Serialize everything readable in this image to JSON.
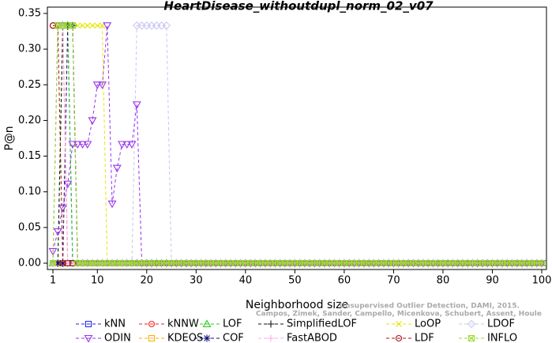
{
  "chart_data": {
    "type": "line",
    "title": "HeartDisease_withoutdupl_norm_02_v07",
    "xlabel": "Neighborhood size",
    "ylabel": "P@n",
    "annotations": [
      "Campos, Zimek, Sander, Campello, Micenkova, Schubert, Assent, Houle",
      "Unsupervised Outlier Detection, DAMI, 2015."
    ],
    "xlim": [
      1,
      100
    ],
    "ylim": [
      0,
      0.35
    ],
    "xticks": [
      1,
      10,
      20,
      30,
      40,
      50,
      60,
      70,
      80,
      90,
      100
    ],
    "yticks": [
      {
        "value": 0,
        "label": "0.00"
      },
      0.05,
      {
        "value": 0.1,
        "label": "0.10"
      },
      0.15,
      {
        "value": 0.2,
        "label": "0.20"
      },
      0.25,
      {
        "value": 0.3,
        "label": "0.30"
      },
      0.35
    ],
    "x": [
      1,
      2,
      3,
      4,
      5,
      6,
      7,
      8,
      9,
      10,
      11,
      12,
      13,
      14,
      15,
      16,
      17,
      18,
      19,
      20,
      21,
      22,
      23,
      24,
      25,
      26,
      27,
      28,
      29,
      30,
      31,
      32,
      33,
      34,
      35,
      36,
      37,
      38,
      39,
      40,
      41,
      42,
      43,
      44,
      45,
      46,
      47,
      48,
      49,
      50,
      51,
      52,
      53,
      54,
      55,
      56,
      57,
      58,
      59,
      60,
      61,
      62,
      63,
      64,
      65,
      66,
      67,
      68,
      69,
      70,
      71,
      72,
      73,
      74,
      75,
      76,
      77,
      78,
      79,
      80,
      81,
      82,
      83,
      84,
      85,
      86,
      87,
      88,
      89,
      90,
      91,
      92,
      93,
      94,
      95,
      96,
      97,
      98,
      99,
      100
    ],
    "series": [
      {
        "name": "kNN",
        "color": "#2222ee",
        "marker": "square",
        "values": [
          0,
          0.333,
          0.333,
          0.333,
          0,
          0,
          0,
          0,
          0,
          0,
          0,
          0,
          0,
          0,
          0,
          0,
          0,
          0,
          0,
          0,
          0,
          0,
          0,
          0,
          0,
          0,
          0,
          0,
          0,
          0,
          0,
          0,
          0,
          0,
          0,
          0,
          0,
          0,
          0,
          0,
          0,
          0,
          0,
          0,
          0,
          0,
          0,
          0,
          0,
          0,
          0,
          0,
          0,
          0,
          0,
          0,
          0,
          0,
          0,
          0,
          0,
          0,
          0,
          0,
          0,
          0,
          0,
          0,
          0,
          0,
          0,
          0,
          0,
          0,
          0,
          0,
          0,
          0,
          0,
          0,
          0,
          0,
          0,
          0,
          0,
          0,
          0,
          0,
          0,
          0,
          0,
          0,
          0,
          0,
          0,
          0,
          0,
          0,
          0,
          0
        ]
      },
      {
        "name": "kNNW",
        "color": "#ee2222",
        "marker": "circle",
        "values": [
          0.333,
          0.333,
          0.333,
          0,
          0,
          0,
          0,
          0,
          0,
          0,
          0,
          0,
          0,
          0,
          0,
          0,
          0,
          0,
          0,
          0,
          0,
          0,
          0,
          0,
          0,
          0,
          0,
          0,
          0,
          0,
          0,
          0,
          0,
          0,
          0,
          0,
          0,
          0,
          0,
          0,
          0,
          0,
          0,
          0,
          0,
          0,
          0,
          0,
          0,
          0,
          0,
          0,
          0,
          0,
          0,
          0,
          0,
          0,
          0,
          0,
          0,
          0,
          0,
          0,
          0,
          0,
          0,
          0,
          0,
          0,
          0,
          0,
          0,
          0,
          0,
          0,
          0,
          0,
          0,
          0,
          0,
          0,
          0,
          0,
          0,
          0,
          0,
          0,
          0,
          0,
          0,
          0,
          0,
          0,
          0,
          0,
          0,
          0,
          0,
          0
        ]
      },
      {
        "name": "LOF",
        "color": "#22cc22",
        "marker": "triangle",
        "values": [
          0,
          0,
          0.333,
          0.333,
          0,
          0,
          0,
          0,
          0,
          0,
          0,
          0,
          0,
          0,
          0,
          0,
          0,
          0,
          0,
          0,
          0,
          0,
          0,
          0,
          0,
          0,
          0,
          0,
          0,
          0,
          0,
          0,
          0,
          0,
          0,
          0,
          0,
          0,
          0,
          0,
          0,
          0,
          0,
          0,
          0,
          0,
          0,
          0,
          0,
          0,
          0,
          0,
          0,
          0,
          0,
          0,
          0,
          0,
          0,
          0,
          0,
          0,
          0,
          0,
          0,
          0,
          0,
          0,
          0,
          0,
          0,
          0,
          0,
          0,
          0,
          0,
          0,
          0,
          0,
          0,
          0,
          0,
          0,
          0,
          0,
          0,
          0,
          0,
          0,
          0,
          0,
          0,
          0,
          0,
          0,
          0,
          0,
          0,
          0,
          0
        ]
      },
      {
        "name": "SimplifiedLOF",
        "color": "#111111",
        "marker": "plus",
        "values": [
          0,
          0,
          0.333,
          0.333,
          0.333,
          0,
          0,
          0,
          0,
          0,
          0,
          0,
          0,
          0,
          0,
          0,
          0,
          0,
          0,
          0,
          0,
          0,
          0,
          0,
          0,
          0,
          0,
          0,
          0,
          0,
          0,
          0,
          0,
          0,
          0,
          0,
          0,
          0,
          0,
          0,
          0,
          0,
          0,
          0,
          0,
          0,
          0,
          0,
          0,
          0,
          0,
          0,
          0,
          0,
          0,
          0,
          0,
          0,
          0,
          0,
          0,
          0,
          0,
          0,
          0,
          0,
          0,
          0,
          0,
          0,
          0,
          0,
          0,
          0,
          0,
          0,
          0,
          0,
          0,
          0,
          0,
          0,
          0,
          0,
          0,
          0,
          0,
          0,
          0,
          0,
          0,
          0,
          0,
          0,
          0,
          0,
          0,
          0,
          0,
          0
        ]
      },
      {
        "name": "LoOP",
        "color": "#e6e600",
        "marker": "x",
        "values": [
          0,
          0.333,
          0.333,
          0.333,
          0.333,
          0.333,
          0.333,
          0.333,
          0.333,
          0.333,
          0.333,
          0,
          0,
          0,
          0,
          0,
          0,
          0,
          0,
          0,
          0,
          0,
          0,
          0,
          0,
          0,
          0,
          0,
          0,
          0,
          0,
          0,
          0,
          0,
          0,
          0,
          0,
          0,
          0,
          0,
          0,
          0,
          0,
          0,
          0,
          0,
          0,
          0,
          0,
          0,
          0,
          0,
          0,
          0,
          0,
          0,
          0,
          0,
          0,
          0,
          0,
          0,
          0,
          0,
          0,
          0,
          0,
          0,
          0,
          0,
          0,
          0,
          0,
          0,
          0,
          0,
          0,
          0,
          0,
          0,
          0,
          0,
          0,
          0,
          0,
          0,
          0,
          0,
          0,
          0,
          0,
          0,
          0,
          0,
          0,
          0,
          0,
          0,
          0,
          0
        ]
      },
      {
        "name": "LDOF",
        "color": "#c8c8ee",
        "marker": "diamond",
        "values": [
          0,
          0,
          0,
          0,
          0,
          0,
          0,
          0,
          0,
          0,
          0,
          0,
          0,
          0,
          0,
          0,
          0,
          0.333,
          0.333,
          0.333,
          0.333,
          0.333,
          0.333,
          0.333,
          0,
          0,
          0,
          0,
          0,
          0,
          0,
          0,
          0,
          0,
          0,
          0,
          0,
          0,
          0,
          0,
          0,
          0,
          0,
          0,
          0,
          0,
          0,
          0,
          0,
          0,
          0,
          0,
          0,
          0,
          0,
          0,
          0,
          0,
          0,
          0,
          0,
          0,
          0,
          0,
          0,
          0,
          0,
          0,
          0,
          0,
          0,
          0,
          0,
          0,
          0,
          0,
          0,
          0,
          0,
          0,
          0,
          0,
          0,
          0,
          0,
          0,
          0,
          0,
          0,
          0,
          0,
          0,
          0,
          0,
          0,
          0,
          0,
          0,
          0,
          0
        ]
      },
      {
        "name": "ODIN",
        "color": "#9933ee",
        "marker": "triangle-down",
        "values": [
          0.0167,
          0.0444,
          0.0778,
          0.1111,
          0.1667,
          0.1667,
          0.1667,
          0.1667,
          0.2,
          0.25,
          0.25,
          0.333,
          0.0833,
          0.1333,
          0.1667,
          0.1667,
          0.1667,
          0.2222,
          0,
          0,
          0,
          0,
          0,
          0,
          0,
          0,
          0,
          0,
          0,
          0,
          0,
          0,
          0,
          0,
          0,
          0,
          0,
          0,
          0,
          0,
          0,
          0,
          0,
          0,
          0,
          0,
          0,
          0,
          0,
          0,
          0,
          0,
          0,
          0,
          0,
          0,
          0,
          0,
          0,
          0,
          0,
          0,
          0,
          0,
          0,
          0,
          0,
          0,
          0,
          0,
          0,
          0,
          0,
          0,
          0,
          0,
          0,
          0,
          0,
          0,
          0,
          0,
          0,
          0,
          0,
          0,
          0,
          0,
          0,
          0,
          0,
          0,
          0,
          0,
          0,
          0,
          0,
          0,
          0,
          0
        ]
      },
      {
        "name": "KDEOS",
        "color": "#ffaa00",
        "marker": "square",
        "values": [
          0,
          0,
          0,
          0.333,
          0.333,
          0,
          0,
          0,
          0,
          0,
          0,
          0,
          0,
          0,
          0,
          0,
          0,
          0,
          0,
          0,
          0,
          0,
          0,
          0,
          0,
          0,
          0,
          0,
          0,
          0,
          0,
          0,
          0,
          0,
          0,
          0,
          0,
          0,
          0,
          0,
          0,
          0,
          0,
          0,
          0,
          0,
          0,
          0,
          0,
          0,
          0,
          0,
          0,
          0,
          0,
          0,
          0,
          0,
          0,
          0,
          0,
          0,
          0,
          0,
          0,
          0,
          0,
          0,
          0,
          0,
          0,
          0,
          0,
          0,
          0,
          0,
          0,
          0,
          0,
          0,
          0,
          0,
          0,
          0,
          0,
          0,
          0,
          0,
          0,
          0,
          0,
          0,
          0,
          0,
          0,
          0,
          0,
          0,
          0,
          0
        ]
      },
      {
        "name": "COF",
        "color": "#111177",
        "marker": "star",
        "values": [
          0,
          0,
          0,
          0.333,
          0.333,
          0,
          0,
          0,
          0,
          0,
          0,
          0,
          0,
          0,
          0,
          0,
          0,
          0,
          0,
          0,
          0,
          0,
          0,
          0,
          0,
          0,
          0,
          0,
          0,
          0,
          0,
          0,
          0,
          0,
          0,
          0,
          0,
          0,
          0,
          0,
          0,
          0,
          0,
          0,
          0,
          0,
          0,
          0,
          0,
          0,
          0,
          0,
          0,
          0,
          0,
          0,
          0,
          0,
          0,
          0,
          0,
          0,
          0,
          0,
          0,
          0,
          0,
          0,
          0,
          0,
          0,
          0,
          0,
          0,
          0,
          0,
          0,
          0,
          0,
          0,
          0,
          0,
          0,
          0,
          0,
          0,
          0,
          0,
          0,
          0,
          0,
          0,
          0,
          0,
          0,
          0,
          0,
          0,
          0,
          0
        ]
      },
      {
        "name": "FastABOD",
        "color": "#ffaaee",
        "marker": "plus",
        "values": [
          0,
          0.333,
          0.333,
          0,
          0,
          0,
          0,
          0,
          0,
          0,
          0,
          0,
          0,
          0,
          0,
          0,
          0,
          0,
          0,
          0,
          0,
          0,
          0,
          0,
          0,
          0,
          0,
          0,
          0,
          0,
          0,
          0,
          0,
          0,
          0,
          0,
          0,
          0,
          0,
          0,
          0,
          0,
          0,
          0,
          0,
          0,
          0,
          0,
          0,
          0,
          0,
          0,
          0,
          0,
          0,
          0,
          0,
          0,
          0,
          0,
          0,
          0,
          0,
          0,
          0,
          0,
          0,
          0,
          0,
          0,
          0,
          0,
          0,
          0,
          0,
          0,
          0,
          0,
          0,
          0,
          0,
          0,
          0,
          0,
          0,
          0,
          0,
          0,
          0,
          0,
          0,
          0,
          0,
          0,
          0,
          0,
          0,
          0,
          0,
          0
        ]
      },
      {
        "name": "LDF",
        "color": "#aa1111",
        "marker": "circle",
        "values": [
          0.333,
          0.333,
          0,
          0,
          0,
          0,
          0,
          0,
          0,
          0,
          0,
          0,
          0,
          0,
          0,
          0,
          0,
          0,
          0,
          0,
          0,
          0,
          0,
          0,
          0,
          0,
          0,
          0,
          0,
          0,
          0,
          0,
          0,
          0,
          0,
          0,
          0,
          0,
          0,
          0,
          0,
          0,
          0,
          0,
          0,
          0,
          0,
          0,
          0,
          0,
          0,
          0,
          0,
          0,
          0,
          0,
          0,
          0,
          0,
          0,
          0,
          0,
          0,
          0,
          0,
          0,
          0,
          0,
          0,
          0,
          0,
          0,
          0,
          0,
          0,
          0,
          0,
          0,
          0,
          0,
          0,
          0,
          0,
          0,
          0,
          0,
          0,
          0,
          0,
          0,
          0,
          0,
          0,
          0,
          0,
          0,
          0,
          0,
          0,
          0
        ]
      },
      {
        "name": "INFLO",
        "color": "#99dd33",
        "marker": "square-x",
        "values": [
          0,
          0.333,
          0.333,
          0.333,
          0.333,
          0,
          0,
          0,
          0,
          0,
          0,
          0,
          0,
          0,
          0,
          0,
          0,
          0,
          0,
          0,
          0,
          0,
          0,
          0,
          0,
          0,
          0,
          0,
          0,
          0,
          0,
          0,
          0,
          0,
          0,
          0,
          0,
          0,
          0,
          0,
          0,
          0,
          0,
          0,
          0,
          0,
          0,
          0,
          0,
          0,
          0,
          0,
          0,
          0,
          0,
          0,
          0,
          0,
          0,
          0,
          0,
          0,
          0,
          0,
          0,
          0,
          0,
          0,
          0,
          0,
          0,
          0,
          0,
          0,
          0,
          0,
          0,
          0,
          0,
          0,
          0,
          0,
          0,
          0,
          0,
          0,
          0,
          0,
          0,
          0,
          0,
          0,
          0,
          0,
          0,
          0,
          0,
          0,
          0,
          0
        ]
      }
    ]
  }
}
